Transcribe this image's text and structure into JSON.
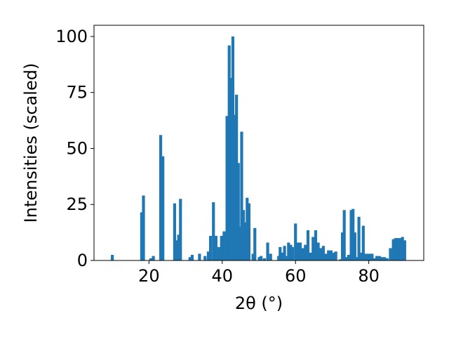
{
  "chart_data": {
    "type": "bar",
    "title": "",
    "xlabel": "2θ (°)",
    "ylabel": "Intensities (scaled)",
    "xlim": [
      5,
      95
    ],
    "ylim": [
      0,
      105
    ],
    "xticks": [
      20,
      40,
      60,
      80
    ],
    "yticks": [
      0,
      25,
      50,
      75,
      100
    ],
    "grid": false,
    "bar_color": "#1f77b4",
    "bar_width": 0.8,
    "x": [
      10.0,
      18.0,
      18.5,
      20.5,
      21.2,
      23.2,
      23.8,
      27.0,
      27.6,
      28.1,
      28.6,
      31.2,
      31.8,
      33.8,
      35.3,
      36.2,
      36.8,
      37.6,
      38.3,
      39.1,
      39.8,
      40.5,
      41.3,
      41.9,
      42.4,
      42.9,
      43.4,
      43.9,
      44.4,
      44.9,
      45.3,
      45.8,
      46.3,
      46.8,
      47.3,
      48.4,
      48.9,
      50.1,
      50.6,
      51.5,
      52.4,
      53.2,
      55.4,
      55.8,
      56.5,
      57.0,
      57.5,
      58.1,
      58.7,
      59.2,
      60.0,
      60.6,
      61.3,
      62.0,
      62.7,
      63.4,
      64.1,
      64.8,
      65.5,
      66.2,
      66.9,
      67.6,
      68.3,
      69.0,
      69.7,
      70.4,
      71.0,
      72.2,
      72.8,
      73.3,
      73.9,
      74.5,
      75.2,
      75.7,
      76.2,
      76.8,
      77.3,
      77.9,
      78.5,
      79.1,
      79.7,
      80.3,
      80.9,
      81.5,
      82.2,
      82.9,
      83.6,
      84.3,
      85.0,
      85.9,
      86.7,
      87.3,
      87.9,
      88.6,
      89.2,
      89.8
    ],
    "values": [
      2.5,
      21.5,
      29,
      1,
      2,
      56,
      46.5,
      25.5,
      9,
      11.5,
      27.5,
      1.5,
      2.5,
      3,
      2,
      4,
      11,
      26,
      11,
      6,
      11,
      13,
      64.5,
      96,
      81.5,
      100,
      65,
      74,
      43.5,
      15,
      57.5,
      22.5,
      17,
      28,
      25.5,
      3,
      14.5,
      1.5,
      2,
      1,
      8,
      3,
      2,
      6,
      3.5,
      6.5,
      2,
      8,
      7,
      6,
      16.5,
      8,
      8,
      5.5,
      7,
      13.5,
      3.5,
      10.5,
      13.5,
      8,
      5.5,
      6.5,
      3,
      4.5,
      4.5,
      3.5,
      4,
      0.5,
      12.5,
      22.5,
      1.5,
      2.5,
      22.5,
      23,
      12.5,
      1.5,
      19.5,
      3.5,
      15.5,
      3,
      3,
      3,
      3,
      1,
      2,
      2,
      1.5,
      1.5,
      1,
      5.5,
      9.5,
      10,
      10,
      10,
      10.5,
      9
    ]
  }
}
